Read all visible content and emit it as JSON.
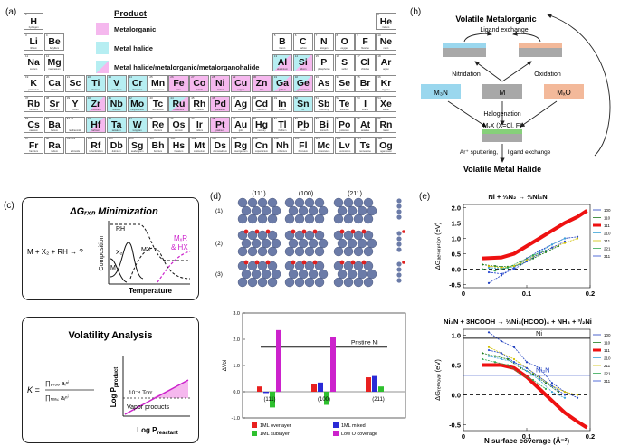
{
  "labels": {
    "a": "(a)",
    "b": "(b)",
    "c": "(c)",
    "d": "(d)",
    "e": "(e)"
  },
  "legend": {
    "title": "Product",
    "items": [
      {
        "label": "Metalorganic",
        "kind": "metalorganic"
      },
      {
        "label": "Metal halide",
        "kind": "metalhalide"
      },
      {
        "label": "Metal halide/metalorganic/metalorganohalide",
        "kind": "both"
      }
    ],
    "colors": {
      "metalorganic": "#f5b8ee",
      "metalhalide": "#b6eef2"
    }
  },
  "periodic_table": [
    {
      "n": "1",
      "s": "H",
      "name": "hydrogen",
      "r": 0,
      "c": 0
    },
    {
      "n": "2",
      "s": "He",
      "name": "helium",
      "r": 0,
      "c": 17
    },
    {
      "n": "3",
      "s": "Li",
      "name": "lithium",
      "r": 1,
      "c": 0
    },
    {
      "n": "4",
      "s": "Be",
      "name": "beryllium",
      "r": 1,
      "c": 1
    },
    {
      "n": "5",
      "s": "B",
      "name": "boron",
      "r": 1,
      "c": 12
    },
    {
      "n": "6",
      "s": "C",
      "name": "carbon",
      "r": 1,
      "c": 13
    },
    {
      "n": "7",
      "s": "N",
      "name": "nitrogen",
      "r": 1,
      "c": 14
    },
    {
      "n": "8",
      "s": "O",
      "name": "oxygen",
      "r": 1,
      "c": 15
    },
    {
      "n": "9",
      "s": "F",
      "name": "fluorine",
      "r": 1,
      "c": 16
    },
    {
      "n": "10",
      "s": "Ne",
      "name": "neon",
      "r": 1,
      "c": 17
    },
    {
      "n": "11",
      "s": "Na",
      "name": "sodium",
      "r": 2,
      "c": 0
    },
    {
      "n": "12",
      "s": "Mg",
      "name": "magnesium",
      "r": 2,
      "c": 1
    },
    {
      "n": "13",
      "s": "Al",
      "name": "aluminium",
      "r": 2,
      "c": 12,
      "k": "both"
    },
    {
      "n": "14",
      "s": "Si",
      "name": "silicon",
      "r": 2,
      "c": 13,
      "k": "both"
    },
    {
      "n": "15",
      "s": "P",
      "name": "phosphorus",
      "r": 2,
      "c": 14
    },
    {
      "n": "16",
      "s": "S",
      "name": "sulfur",
      "r": 2,
      "c": 15
    },
    {
      "n": "17",
      "s": "Cl",
      "name": "chlorine",
      "r": 2,
      "c": 16
    },
    {
      "n": "18",
      "s": "Ar",
      "name": "argon",
      "r": 2,
      "c": 17
    },
    {
      "n": "19",
      "s": "K",
      "name": "potassium",
      "r": 3,
      "c": 0
    },
    {
      "n": "20",
      "s": "Ca",
      "name": "calcium",
      "r": 3,
      "c": 1
    },
    {
      "n": "21",
      "s": "Sc",
      "name": "scandium",
      "r": 3,
      "c": 2
    },
    {
      "n": "22",
      "s": "Ti",
      "name": "titanium",
      "r": 3,
      "c": 3,
      "k": "metalhalide"
    },
    {
      "n": "23",
      "s": "V",
      "name": "vanadium",
      "r": 3,
      "c": 4,
      "k": "metalhalide"
    },
    {
      "n": "24",
      "s": "Cr",
      "name": "chromium",
      "r": 3,
      "c": 5,
      "k": "metalhalide"
    },
    {
      "n": "25",
      "s": "Mn",
      "name": "manganese",
      "r": 3,
      "c": 6
    },
    {
      "n": "26",
      "s": "Fe",
      "name": "iron",
      "r": 3,
      "c": 7,
      "k": "metalorganic"
    },
    {
      "n": "27",
      "s": "Co",
      "name": "cobalt",
      "r": 3,
      "c": 8,
      "k": "metalorganic"
    },
    {
      "n": "28",
      "s": "Ni",
      "name": "nickel",
      "r": 3,
      "c": 9,
      "k": "metalorganic"
    },
    {
      "n": "29",
      "s": "Cu",
      "name": "copper",
      "r": 3,
      "c": 10,
      "k": "metalorganic"
    },
    {
      "n": "30",
      "s": "Zn",
      "name": "zinc",
      "r": 3,
      "c": 11,
      "k": "metalorganic"
    },
    {
      "n": "31",
      "s": "Ga",
      "name": "gallium",
      "r": 3,
      "c": 12,
      "k": "both"
    },
    {
      "n": "32",
      "s": "Ge",
      "name": "germanium",
      "r": 3,
      "c": 13,
      "k": "both"
    },
    {
      "n": "33",
      "s": "As",
      "name": "arsenic",
      "r": 3,
      "c": 14
    },
    {
      "n": "34",
      "s": "Se",
      "name": "selenium",
      "r": 3,
      "c": 15
    },
    {
      "n": "35",
      "s": "Br",
      "name": "bromine",
      "r": 3,
      "c": 16
    },
    {
      "n": "36",
      "s": "Kr",
      "name": "krypton",
      "r": 3,
      "c": 17
    },
    {
      "n": "37",
      "s": "Rb",
      "name": "rubidium",
      "r": 4,
      "c": 0
    },
    {
      "n": "38",
      "s": "Sr",
      "name": "strontium",
      "r": 4,
      "c": 1
    },
    {
      "n": "39",
      "s": "Y",
      "name": "yttrium",
      "r": 4,
      "c": 2
    },
    {
      "n": "40",
      "s": "Zr",
      "name": "zirconium",
      "r": 4,
      "c": 3,
      "k": "both"
    },
    {
      "n": "41",
      "s": "Nb",
      "name": "niobium",
      "r": 4,
      "c": 4,
      "k": "metalhalide"
    },
    {
      "n": "42",
      "s": "Mo",
      "name": "molybdenum",
      "r": 4,
      "c": 5,
      "k": "metalhalide"
    },
    {
      "n": "43",
      "s": "Tc",
      "name": "technetium",
      "r": 4,
      "c": 6
    },
    {
      "n": "44",
      "s": "Ru",
      "name": "ruthenium",
      "r": 4,
      "c": 7,
      "k": "both"
    },
    {
      "n": "45",
      "s": "Rh",
      "name": "rhodium",
      "r": 4,
      "c": 8
    },
    {
      "n": "46",
      "s": "Pd",
      "name": "palladium",
      "r": 4,
      "c": 9,
      "k": "metalorganic"
    },
    {
      "n": "47",
      "s": "Ag",
      "name": "silver",
      "r": 4,
      "c": 10
    },
    {
      "n": "48",
      "s": "Cd",
      "name": "cadmium",
      "r": 4,
      "c": 11
    },
    {
      "n": "49",
      "s": "In",
      "name": "indium",
      "r": 4,
      "c": 12
    },
    {
      "n": "50",
      "s": "Sn",
      "name": "tin",
      "r": 4,
      "c": 13,
      "k": "metalhalide"
    },
    {
      "n": "51",
      "s": "Sb",
      "name": "antimony",
      "r": 4,
      "c": 14
    },
    {
      "n": "52",
      "s": "Te",
      "name": "tellurium",
      "r": 4,
      "c": 15
    },
    {
      "n": "53",
      "s": "I",
      "name": "iodine",
      "r": 4,
      "c": 16
    },
    {
      "n": "54",
      "s": "Xe",
      "name": "xenon",
      "r": 4,
      "c": 17
    },
    {
      "n": "55",
      "s": "Cs",
      "name": "caesium",
      "r": 5,
      "c": 0
    },
    {
      "n": "56",
      "s": "Ba",
      "name": "barium",
      "r": 5,
      "c": 1
    },
    {
      "n": "57-71",
      "s": "",
      "name": "lanthanoids",
      "r": 5,
      "c": 2
    },
    {
      "n": "72",
      "s": "Hf",
      "name": "hafnium",
      "r": 5,
      "c": 3,
      "k": "both"
    },
    {
      "n": "73",
      "s": "Ta",
      "name": "tantalum",
      "r": 5,
      "c": 4,
      "k": "metalhalide"
    },
    {
      "n": "74",
      "s": "W",
      "name": "tungsten",
      "r": 5,
      "c": 5,
      "k": "metalhalide"
    },
    {
      "n": "75",
      "s": "Re",
      "name": "rhenium",
      "r": 5,
      "c": 6
    },
    {
      "n": "76",
      "s": "Os",
      "name": "osmium",
      "r": 5,
      "c": 7
    },
    {
      "n": "77",
      "s": "Ir",
      "name": "iridium",
      "r": 5,
      "c": 8
    },
    {
      "n": "78",
      "s": "Pt",
      "name": "platinum",
      "r": 5,
      "c": 9,
      "k": "metalorganic"
    },
    {
      "n": "79",
      "s": "Au",
      "name": "gold",
      "r": 5,
      "c": 10
    },
    {
      "n": "80",
      "s": "Hg",
      "name": "mercury",
      "r": 5,
      "c": 11
    },
    {
      "n": "81",
      "s": "Tl",
      "name": "thallium",
      "r": 5,
      "c": 12
    },
    {
      "n": "82",
      "s": "Pb",
      "name": "lead",
      "r": 5,
      "c": 13
    },
    {
      "n": "83",
      "s": "Bi",
      "name": "bismuth",
      "r": 5,
      "c": 14
    },
    {
      "n": "84",
      "s": "Po",
      "name": "polonium",
      "r": 5,
      "c": 15
    },
    {
      "n": "85",
      "s": "At",
      "name": "astatine",
      "r": 5,
      "c": 16
    },
    {
      "n": "86",
      "s": "Rn",
      "name": "radon",
      "r": 5,
      "c": 17
    },
    {
      "n": "87",
      "s": "Fr",
      "name": "francium",
      "r": 6,
      "c": 0
    },
    {
      "n": "88",
      "s": "Ra",
      "name": "radium",
      "r": 6,
      "c": 1
    },
    {
      "n": "89-103",
      "s": "",
      "name": "actinoids",
      "r": 6,
      "c": 2
    },
    {
      "n": "104",
      "s": "Rf",
      "name": "rutherfordium",
      "r": 6,
      "c": 3
    },
    {
      "n": "105",
      "s": "Db",
      "name": "dubnium",
      "r": 6,
      "c": 4
    },
    {
      "n": "106",
      "s": "Sg",
      "name": "seaborgium",
      "r": 6,
      "c": 5
    },
    {
      "n": "107",
      "s": "Bh",
      "name": "bohrium",
      "r": 6,
      "c": 6
    },
    {
      "n": "108",
      "s": "Hs",
      "name": "hassium",
      "r": 6,
      "c": 7
    },
    {
      "n": "109",
      "s": "Mt",
      "name": "meitnerium",
      "r": 6,
      "c": 8
    },
    {
      "n": "110",
      "s": "Ds",
      "name": "darmstadtium",
      "r": 6,
      "c": 9
    },
    {
      "n": "111",
      "s": "Rg",
      "name": "roentgenium",
      "r": 6,
      "c": 10
    },
    {
      "n": "112",
      "s": "Cn",
      "name": "copernicium",
      "r": 6,
      "c": 11
    },
    {
      "n": "113",
      "s": "Nh",
      "name": "nihonium",
      "r": 6,
      "c": 12
    },
    {
      "n": "114",
      "s": "Fl",
      "name": "flerovium",
      "r": 6,
      "c": 13
    },
    {
      "n": "115",
      "s": "Mc",
      "name": "moscovium",
      "r": 6,
      "c": 14
    },
    {
      "n": "116",
      "s": "Lv",
      "name": "livermorium",
      "r": 6,
      "c": 15
    },
    {
      "n": "117",
      "s": "Ts",
      "name": "tennessine",
      "r": 6,
      "c": 16
    },
    {
      "n": "118",
      "s": "Og",
      "name": "oganesson",
      "r": 6,
      "c": 17
    }
  ],
  "panel_b": {
    "top": "Volatile Metalorganic",
    "ligand_exchange": "Ligand exchange",
    "nitridation": "Nitridation",
    "oxidation": "Oxidation",
    "halogenation": "Halogenation",
    "m": "M",
    "m3n": "M₃N",
    "mxo": "MₓO",
    "mxx": "MₓX (X=Cl, F)",
    "sputter": "Ar⁺ sputtering,",
    "ligand_exchange2": "ligand exchange",
    "bottom": "Volatile Metal Halide"
  },
  "panel_c": {
    "title1": "ΔGᵣₓₙ Minimization",
    "reaction": "M + X₂ + RH → ?",
    "rh": "RH",
    "x2": "X₂",
    "mx": "MX",
    "m": "M",
    "mxr": "MₓR",
    "hx": "& HX",
    "composition": "Composition",
    "temperature": "Temperature",
    "title2": "Volatility Analysis",
    "k_eq": "K =",
    "num": "∏ₚᵣₒₔ aᵢⁿⁱ",
    "den": "∏ᵣₑₐ꜀ aᵢⁿⁱ",
    "torr": "10⁻⁴ Torr",
    "vapor": "Vapor products",
    "logprod": "Log P",
    "logprod_sub": "product",
    "logreact": "Log P",
    "logreact_sub": "reactant"
  },
  "panel_d": {
    "facets": [
      "(111)",
      "(100)",
      "(211)"
    ],
    "rows": [
      "(1)",
      "(2)",
      "(3)"
    ],
    "pristine": "Pristine Ni",
    "ylabel": "ΔVol",
    "legend": [
      "1ML overlayer",
      "1ML mixed",
      "1ML sublayer",
      "Low O coverage"
    ]
  },
  "panel_e": {
    "top_title": "Ni + ⅓N₂ → ⅓Ni₃N",
    "bottom_title": "Ni₃N + 3HCOOH → ⅓Ni₃(HCOO)₄ + NH₃ + ³/₂Ni",
    "ylabel_top": "ΔGₐₑₛₒᵣₚₜᵢₒₙ (eV)",
    "ylabel_bottom": "ΔGᵣₑₘₒᵥₐₗ (eV)",
    "xlabel": "N surface coverage (Å⁻²)",
    "ni_label": "Ni",
    "ni3n_label": "Ni₃N",
    "series_names": [
      "100",
      "110",
      "111",
      "210",
      "211",
      "221",
      "311"
    ]
  },
  "chart_data": [
    {
      "type": "bar",
      "title": "",
      "ylabel": "ΔVol",
      "categories": [
        "(111)",
        "(100)",
        "(211)"
      ],
      "ylim": [
        -1.0,
        3.0
      ],
      "yticks": [
        "-1.0",
        "0.0",
        "1.0",
        "2.0",
        "3.0"
      ],
      "reference_line": {
        "name": "Pristine Ni",
        "value": 1.7
      },
      "series": [
        {
          "name": "1ML overlayer",
          "color": "#e8201f",
          "values": [
            0.2,
            0.28,
            0.55
          ]
        },
        {
          "name": "1ML mixed",
          "color": "#2a2ad6",
          "values": [
            -0.05,
            0.35,
            0.6
          ]
        },
        {
          "name": "1ML sublayer",
          "color": "#2ec02e",
          "values": [
            -0.6,
            -0.5,
            0.2
          ]
        },
        {
          "name": "Low O coverage",
          "color": "#cc22cc",
          "values": [
            2.35,
            2.1,
            null
          ]
        }
      ]
    },
    {
      "type": "line",
      "title": "Ni + ⅓N₂ → ⅓Ni₃N",
      "ylabel": "ΔG adsorption (eV)",
      "xlim": [
        0,
        0.2
      ],
      "ylim": [
        -0.6,
        2.1
      ],
      "xticks": [
        "0",
        "0.1",
        "0.2"
      ],
      "yticks": [
        "-0.5",
        "0.0",
        "0.5",
        "1.0",
        "1.5",
        "2.0"
      ],
      "series": [
        {
          "name": "100",
          "color": "#1f3fbf",
          "x": [
            0.04,
            0.06,
            0.08,
            0.1,
            0.12,
            0.14,
            0.16,
            0.18
          ],
          "y": [
            -0.45,
            -0.2,
            0.05,
            0.35,
            0.6,
            0.8,
            1.0,
            1.05
          ]
        },
        {
          "name": "110",
          "color": "#1c7a1c",
          "x": [
            0.03,
            0.05,
            0.07,
            0.09,
            0.11,
            0.13,
            0.15
          ],
          "y": [
            0.15,
            0.1,
            0.08,
            0.15,
            0.35,
            0.55,
            0.75
          ]
        },
        {
          "name": "111",
          "color": "#ee1111",
          "x": [
            0.03,
            0.06,
            0.08,
            0.1,
            0.12,
            0.14,
            0.16,
            0.18,
            0.195
          ],
          "y": [
            0.35,
            0.38,
            0.5,
            0.75,
            1.0,
            1.25,
            1.5,
            1.7,
            1.9
          ]
        },
        {
          "name": "210",
          "color": "#3aa3d8",
          "x": [
            0.04,
            0.06,
            0.08,
            0.1,
            0.12,
            0.14,
            0.16
          ],
          "y": [
            0.05,
            0.02,
            0.08,
            0.3,
            0.55,
            0.8,
            1.0
          ]
        },
        {
          "name": "211",
          "color": "#d1c000",
          "x": [
            0.04,
            0.06,
            0.08,
            0.1,
            0.12,
            0.14,
            0.16,
            0.18
          ],
          "y": [
            0.1,
            0.05,
            0.1,
            0.3,
            0.5,
            0.7,
            0.85,
            1.0
          ]
        },
        {
          "name": "221",
          "color": "#32a852",
          "x": [
            0.03,
            0.05,
            0.07,
            0.09,
            0.11,
            0.13
          ],
          "y": [
            0.0,
            -0.05,
            0.05,
            0.25,
            0.45,
            0.6
          ]
        },
        {
          "name": "311",
          "color": "#2a4bd1",
          "x": [
            0.04,
            0.06,
            0.08,
            0.1,
            0.12,
            0.14,
            0.16
          ],
          "y": [
            -0.1,
            -0.15,
            0.0,
            0.25,
            0.5,
            0.7,
            0.9
          ]
        }
      ]
    },
    {
      "type": "line",
      "title": "Ni₃N + 3HCOOH → ⅓Ni₃(HCOO)₄ + NH₃ + ³/₂Ni",
      "ylabel": "ΔG removal (eV)",
      "xlabel": "N surface coverage (Å⁻²)",
      "xlim": [
        0,
        0.2
      ],
      "ylim": [
        -0.6,
        1.1
      ],
      "xticks": [
        "0",
        "0.1",
        "0.2"
      ],
      "yticks": [
        "-0.5",
        "0.0",
        "0.5",
        "1.0"
      ],
      "reference_lines": [
        {
          "name": "Ni",
          "value": 0.95
        },
        {
          "name": "Ni₃N",
          "value": 0.33
        }
      ],
      "series": [
        {
          "name": "100",
          "color": "#1f3fbf",
          "x": [
            0.04,
            0.06,
            0.08,
            0.1,
            0.12,
            0.14,
            0.16,
            0.18
          ],
          "y": [
            1.05,
            0.9,
            0.8,
            0.55,
            0.45,
            0.2,
            0.05,
            -0.05
          ]
        },
        {
          "name": "110",
          "color": "#1c7a1c",
          "x": [
            0.03,
            0.05,
            0.07,
            0.09,
            0.11,
            0.13,
            0.15
          ],
          "y": [
            0.7,
            0.65,
            0.6,
            0.45,
            0.35,
            0.2,
            0.05
          ]
        },
        {
          "name": "111",
          "color": "#ee1111",
          "x": [
            0.03,
            0.06,
            0.08,
            0.1,
            0.12,
            0.14,
            0.16,
            0.18,
            0.195
          ],
          "y": [
            0.5,
            0.5,
            0.45,
            0.3,
            0.1,
            -0.1,
            -0.3,
            -0.45,
            -0.55
          ]
        },
        {
          "name": "210",
          "color": "#3aa3d8",
          "x": [
            0.04,
            0.06,
            0.08,
            0.1,
            0.12,
            0.14,
            0.16
          ],
          "y": [
            0.65,
            0.6,
            0.55,
            0.4,
            0.25,
            0.05,
            -0.05
          ]
        },
        {
          "name": "211",
          "color": "#d1c000",
          "x": [
            0.04,
            0.06,
            0.08,
            0.1,
            0.12,
            0.14,
            0.16,
            0.18
          ],
          "y": [
            0.8,
            0.7,
            0.6,
            0.45,
            0.3,
            0.15,
            0.05,
            0.0
          ]
        },
        {
          "name": "221",
          "color": "#32a852",
          "x": [
            0.03,
            0.05,
            0.07,
            0.09,
            0.11,
            0.13
          ],
          "y": [
            0.6,
            0.55,
            0.5,
            0.35,
            0.25,
            0.1
          ]
        },
        {
          "name": "311",
          "color": "#2a4bd1",
          "x": [
            0.04,
            0.06,
            0.08,
            0.1,
            0.12,
            0.14,
            0.16
          ],
          "y": [
            0.75,
            0.7,
            0.55,
            0.45,
            0.3,
            0.15,
            0.0
          ]
        }
      ]
    }
  ]
}
